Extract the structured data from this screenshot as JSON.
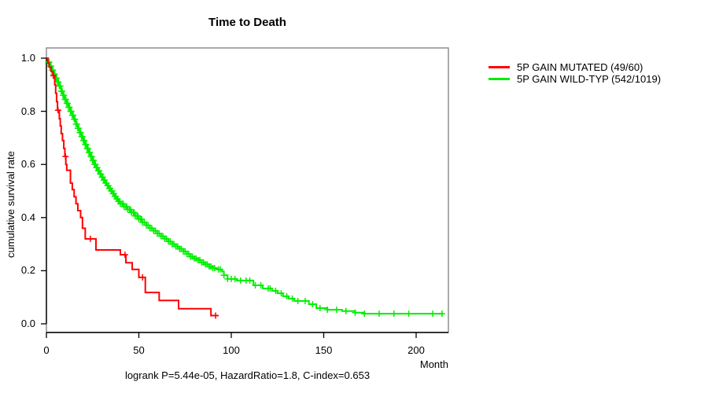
{
  "chart_data": {
    "type": "line",
    "subtype": "kaplan-meier-step-curves",
    "title": "Time to Death",
    "xlabel": "Month",
    "ylabel": "cumulative survival rate",
    "annotation": "logrank P=5.44e-05, HazardRatio=1.8, C-index=0.653",
    "xlim": [
      0,
      217
    ],
    "ylim": [
      0,
      1
    ],
    "grid": false,
    "legend_position": "right-outside",
    "x_ticks": [
      {
        "label": "0",
        "value": 0
      },
      {
        "label": "50",
        "value": 50
      },
      {
        "label": "100",
        "value": 100
      },
      {
        "label": "150",
        "value": 150
      },
      {
        "label": "200",
        "value": 200
      }
    ],
    "y_ticks": [
      {
        "label": "0.0",
        "value": 0.0
      },
      {
        "label": "0.2",
        "value": 0.2
      },
      {
        "label": "0.4",
        "value": 0.4
      },
      {
        "label": "0.6",
        "value": 0.6
      },
      {
        "label": "0.8",
        "value": 0.8
      },
      {
        "label": "1.0",
        "value": 1.0
      }
    ],
    "series": [
      {
        "name": "5P GAIN MUTATED (49/60)",
        "color": "#ff0000",
        "end_month": 93,
        "steps": [
          [
            0,
            1.0
          ],
          [
            0.8,
            0.982
          ],
          [
            1.5,
            0.966
          ],
          [
            2.5,
            0.95
          ],
          [
            3.5,
            0.934
          ],
          [
            4.5,
            0.9
          ],
          [
            5,
            0.868
          ],
          [
            5.5,
            0.836
          ],
          [
            6,
            0.804
          ],
          [
            7,
            0.772
          ],
          [
            7.5,
            0.745
          ],
          [
            8,
            0.716
          ],
          [
            8.7,
            0.69
          ],
          [
            9.4,
            0.66
          ],
          [
            10,
            0.63
          ],
          [
            10.5,
            0.6
          ],
          [
            11,
            0.578
          ],
          [
            13,
            0.53
          ],
          [
            14,
            0.505
          ],
          [
            15,
            0.478
          ],
          [
            16,
            0.452
          ],
          [
            17,
            0.426
          ],
          [
            18.5,
            0.4
          ],
          [
            19.5,
            0.36
          ],
          [
            21,
            0.32
          ],
          [
            26.8,
            0.278
          ],
          [
            40,
            0.26
          ],
          [
            43,
            0.23
          ],
          [
            46.4,
            0.205
          ],
          [
            50,
            0.175
          ],
          [
            53.5,
            0.118
          ],
          [
            61,
            0.088
          ],
          [
            71.5,
            0.057
          ],
          [
            89,
            0.031
          ]
        ],
        "censor_months": [
          3.8,
          6.3,
          10.3,
          23.8,
          42.5,
          52,
          91.5
        ]
      },
      {
        "name": "5P GAIN WILD-TYP (542/1019)",
        "color": "#00ee00",
        "end_month": 214.5,
        "steps": [
          [
            0,
            1.0
          ],
          [
            1,
            0.985
          ],
          [
            2,
            0.97
          ],
          [
            3,
            0.955
          ],
          [
            4,
            0.94
          ],
          [
            5,
            0.925
          ],
          [
            6,
            0.91
          ],
          [
            7,
            0.895
          ],
          [
            8,
            0.876
          ],
          [
            9,
            0.86
          ],
          [
            10,
            0.845
          ],
          [
            11,
            0.83
          ],
          [
            12,
            0.815
          ],
          [
            13,
            0.8
          ],
          [
            14,
            0.785
          ],
          [
            15,
            0.77
          ],
          [
            16,
            0.752
          ],
          [
            17,
            0.736
          ],
          [
            18,
            0.72
          ],
          [
            19,
            0.705
          ],
          [
            20,
            0.69
          ],
          [
            21,
            0.675
          ],
          [
            22,
            0.66
          ],
          [
            23,
            0.645
          ],
          [
            24,
            0.63
          ],
          [
            25,
            0.615
          ],
          [
            26,
            0.6
          ],
          [
            27,
            0.588
          ],
          [
            28,
            0.576
          ],
          [
            29,
            0.564
          ],
          [
            30,
            0.552
          ],
          [
            31,
            0.541
          ],
          [
            32,
            0.53
          ],
          [
            33,
            0.52
          ],
          [
            34,
            0.51
          ],
          [
            35,
            0.5
          ],
          [
            36,
            0.49
          ],
          [
            37,
            0.48
          ],
          [
            38,
            0.47
          ],
          [
            39,
            0.461
          ],
          [
            40,
            0.452
          ],
          [
            42,
            0.441
          ],
          [
            44,
            0.43
          ],
          [
            46,
            0.419
          ],
          [
            48,
            0.406
          ],
          [
            50,
            0.394
          ],
          [
            52,
            0.382
          ],
          [
            54,
            0.371
          ],
          [
            56,
            0.36
          ],
          [
            58,
            0.35
          ],
          [
            60,
            0.34
          ],
          [
            62,
            0.33
          ],
          [
            64,
            0.32
          ],
          [
            66,
            0.31
          ],
          [
            68,
            0.3
          ],
          [
            70,
            0.291
          ],
          [
            72,
            0.282
          ],
          [
            74,
            0.273
          ],
          [
            76,
            0.263
          ],
          [
            78,
            0.253
          ],
          [
            80,
            0.246
          ],
          [
            82,
            0.24
          ],
          [
            84,
            0.231
          ],
          [
            86,
            0.224
          ],
          [
            88,
            0.216
          ],
          [
            90,
            0.21
          ],
          [
            92,
            0.205
          ],
          [
            95,
            0.197
          ],
          [
            96,
            0.183
          ],
          [
            98,
            0.169
          ],
          [
            103,
            0.163
          ],
          [
            112,
            0.145
          ],
          [
            117,
            0.133
          ],
          [
            122,
            0.124
          ],
          [
            125,
            0.115
          ],
          [
            128,
            0.104
          ],
          [
            131,
            0.095
          ],
          [
            134,
            0.086
          ],
          [
            142,
            0.074
          ],
          [
            146,
            0.059
          ],
          [
            152,
            0.053
          ],
          [
            160,
            0.048
          ],
          [
            167,
            0.042
          ],
          [
            172,
            0.038
          ]
        ],
        "censor_months": [
          1,
          1.5,
          2,
          2.5,
          3,
          3.5,
          4,
          4.5,
          5,
          5.5,
          6,
          6.5,
          7,
          7.5,
          8,
          8.5,
          9,
          9.5,
          10,
          10.5,
          11,
          11.5,
          12,
          12.5,
          13,
          13.5,
          14,
          14.5,
          15,
          15.5,
          16,
          16.5,
          17,
          17.5,
          18,
          18.5,
          19,
          19.5,
          20,
          20.5,
          21,
          21.5,
          22,
          22.5,
          23,
          23.5,
          24,
          24.5,
          25,
          25.5,
          26,
          26.5,
          27,
          27.5,
          28,
          28.5,
          29,
          29.5,
          30,
          30.5,
          31,
          31.5,
          32,
          32.5,
          33,
          33.5,
          34,
          34.5,
          35,
          35.5,
          36,
          36.5,
          37,
          37.5,
          38,
          38.5,
          39,
          39.5,
          40,
          41,
          41.5,
          42,
          43,
          43.5,
          44,
          45,
          45.5,
          46,
          47,
          47.5,
          48,
          49,
          49.5,
          50,
          51,
          51.5,
          52,
          53,
          54,
          55,
          56,
          57,
          58,
          59,
          60,
          61,
          62,
          63,
          64,
          65,
          66,
          67,
          68,
          69,
          70,
          71,
          72,
          73,
          74,
          75,
          76,
          77,
          78,
          79,
          80,
          81,
          82,
          83,
          84,
          85,
          86,
          87,
          88,
          89,
          90,
          91,
          93,
          94,
          96,
          98,
          100,
          102,
          105,
          108,
          110,
          113,
          116,
          120,
          121,
          124,
          127,
          130,
          133,
          136,
          140,
          144,
          148,
          152,
          157,
          162,
          167,
          172,
          180,
          188,
          196,
          209,
          214
        ]
      }
    ]
  }
}
